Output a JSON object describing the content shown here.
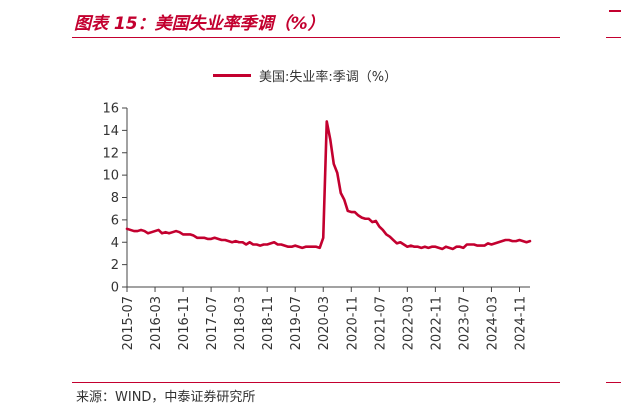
{
  "figure": {
    "title": "图表 15：美国失业率季调（%）",
    "source": "来源：WIND，中泰证券研究所"
  },
  "colors": {
    "accent": "#c3002f",
    "axis": "#444444",
    "text": "#333333"
  },
  "chart_data": {
    "type": "line",
    "title": "",
    "xlabel": "",
    "ylabel": "",
    "ylim": [
      0,
      16
    ],
    "yticks": [
      0,
      2,
      4,
      6,
      8,
      10,
      12,
      14,
      16
    ],
    "xticks": [
      "2015-07",
      "2016-03",
      "2016-11",
      "2017-07",
      "2018-03",
      "2018-11",
      "2019-07",
      "2020-03",
      "2020-11",
      "2021-07",
      "2022-03",
      "2022-11",
      "2023-07",
      "2024-03",
      "2024-11"
    ],
    "grid": false,
    "legend": "top",
    "series": [
      {
        "name": "美国:失业率:季调（%）",
        "color": "#c3002f",
        "points": [
          [
            "2015-07",
            5.2
          ],
          [
            "2015-08",
            5.1
          ],
          [
            "2015-09",
            5.0
          ],
          [
            "2015-10",
            5.0
          ],
          [
            "2015-11",
            5.1
          ],
          [
            "2015-12",
            5.0
          ],
          [
            "2016-01",
            4.8
          ],
          [
            "2016-02",
            4.9
          ],
          [
            "2016-03",
            5.0
          ],
          [
            "2016-04",
            5.1
          ],
          [
            "2016-05",
            4.8
          ],
          [
            "2016-06",
            4.9
          ],
          [
            "2016-07",
            4.8
          ],
          [
            "2016-08",
            4.9
          ],
          [
            "2016-09",
            5.0
          ],
          [
            "2016-10",
            4.9
          ],
          [
            "2016-11",
            4.7
          ],
          [
            "2016-12",
            4.7
          ],
          [
            "2017-01",
            4.7
          ],
          [
            "2017-02",
            4.6
          ],
          [
            "2017-03",
            4.4
          ],
          [
            "2017-04",
            4.4
          ],
          [
            "2017-05",
            4.4
          ],
          [
            "2017-06",
            4.3
          ],
          [
            "2017-07",
            4.3
          ],
          [
            "2017-08",
            4.4
          ],
          [
            "2017-09",
            4.3
          ],
          [
            "2017-10",
            4.2
          ],
          [
            "2017-11",
            4.2
          ],
          [
            "2017-12",
            4.1
          ],
          [
            "2018-01",
            4.0
          ],
          [
            "2018-02",
            4.1
          ],
          [
            "2018-03",
            4.0
          ],
          [
            "2018-04",
            4.0
          ],
          [
            "2018-05",
            3.8
          ],
          [
            "2018-06",
            4.0
          ],
          [
            "2018-07",
            3.8
          ],
          [
            "2018-08",
            3.8
          ],
          [
            "2018-09",
            3.7
          ],
          [
            "2018-10",
            3.8
          ],
          [
            "2018-11",
            3.8
          ],
          [
            "2018-12",
            3.9
          ],
          [
            "2019-01",
            4.0
          ],
          [
            "2019-02",
            3.8
          ],
          [
            "2019-03",
            3.8
          ],
          [
            "2019-04",
            3.7
          ],
          [
            "2019-05",
            3.6
          ],
          [
            "2019-06",
            3.6
          ],
          [
            "2019-07",
            3.7
          ],
          [
            "2019-08",
            3.6
          ],
          [
            "2019-09",
            3.5
          ],
          [
            "2019-10",
            3.6
          ],
          [
            "2019-11",
            3.6
          ],
          [
            "2019-12",
            3.6
          ],
          [
            "2020-01",
            3.6
          ],
          [
            "2020-02",
            3.5
          ],
          [
            "2020-03",
            4.4
          ],
          [
            "2020-04",
            14.8
          ],
          [
            "2020-05",
            13.2
          ],
          [
            "2020-06",
            11.0
          ],
          [
            "2020-07",
            10.2
          ],
          [
            "2020-08",
            8.4
          ],
          [
            "2020-09",
            7.8
          ],
          [
            "2020-10",
            6.8
          ],
          [
            "2020-11",
            6.7
          ],
          [
            "2020-12",
            6.7
          ],
          [
            "2021-01",
            6.4
          ],
          [
            "2021-02",
            6.2
          ],
          [
            "2021-03",
            6.1
          ],
          [
            "2021-04",
            6.1
          ],
          [
            "2021-05",
            5.8
          ],
          [
            "2021-06",
            5.9
          ],
          [
            "2021-07",
            5.4
          ],
          [
            "2021-08",
            5.1
          ],
          [
            "2021-09",
            4.7
          ],
          [
            "2021-10",
            4.5
          ],
          [
            "2021-11",
            4.2
          ],
          [
            "2021-12",
            3.9
          ],
          [
            "2022-01",
            4.0
          ],
          [
            "2022-02",
            3.8
          ],
          [
            "2022-03",
            3.6
          ],
          [
            "2022-04",
            3.7
          ],
          [
            "2022-05",
            3.6
          ],
          [
            "2022-06",
            3.6
          ],
          [
            "2022-07",
            3.5
          ],
          [
            "2022-08",
            3.6
          ],
          [
            "2022-09",
            3.5
          ],
          [
            "2022-10",
            3.6
          ],
          [
            "2022-11",
            3.6
          ],
          [
            "2022-12",
            3.5
          ],
          [
            "2023-01",
            3.4
          ],
          [
            "2023-02",
            3.6
          ],
          [
            "2023-03",
            3.5
          ],
          [
            "2023-04",
            3.4
          ],
          [
            "2023-05",
            3.6
          ],
          [
            "2023-06",
            3.6
          ],
          [
            "2023-07",
            3.5
          ],
          [
            "2023-08",
            3.8
          ],
          [
            "2023-09",
            3.8
          ],
          [
            "2023-10",
            3.8
          ],
          [
            "2023-11",
            3.7
          ],
          [
            "2023-12",
            3.7
          ],
          [
            "2024-01",
            3.7
          ],
          [
            "2024-02",
            3.9
          ],
          [
            "2024-03",
            3.8
          ],
          [
            "2024-04",
            3.9
          ],
          [
            "2024-05",
            4.0
          ],
          [
            "2024-06",
            4.1
          ],
          [
            "2024-07",
            4.2
          ],
          [
            "2024-08",
            4.2
          ],
          [
            "2024-09",
            4.1
          ],
          [
            "2024-10",
            4.1
          ],
          [
            "2024-11",
            4.2
          ],
          [
            "2024-12",
            4.1
          ],
          [
            "2025-01",
            4.0
          ],
          [
            "2025-02",
            4.1
          ]
        ]
      }
    ]
  }
}
